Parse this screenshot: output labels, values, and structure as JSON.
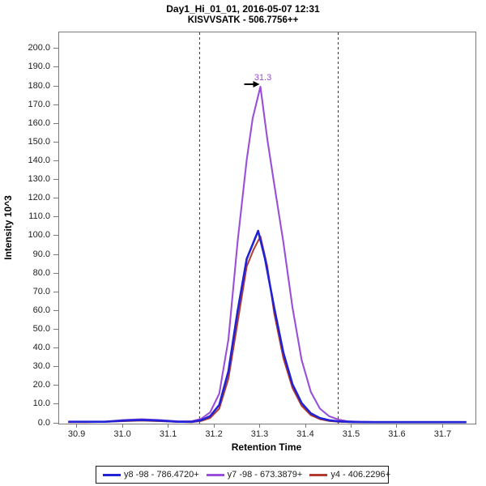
{
  "chart_data": {
    "type": "line",
    "title": "Day1_Hi_01_01, 2016-05-07 12:31",
    "subtitle": "KISVVSATK - 506.7756++",
    "xlabel": "Retention Time",
    "ylabel": "Intensity 10^3",
    "xlim": [
      30.86,
      31.77
    ],
    "ylim": [
      0,
      209
    ],
    "xticks": [
      30.9,
      31.0,
      31.1,
      31.2,
      31.3,
      31.4,
      31.5,
      31.6,
      31.7
    ],
    "ytick_min": 0,
    "ytick_max": 200,
    "ytick_step": 10,
    "grid": false,
    "legend_position": "bottom",
    "border_color": "#7a7a7a",
    "boundary_color": "#333333",
    "integration_boundaries": [
      31.167,
      31.47
    ],
    "peak_annotation": {
      "text": "31.3",
      "rt": 31.3,
      "intensity": 180,
      "color": "#9a4fd8",
      "arrow_color": "#000000"
    },
    "draw_order": [
      1,
      2,
      0
    ],
    "series": [
      {
        "name": "y8 -98 - 786.4720+",
        "color": "#2121d6",
        "width": 2.6,
        "points": [
          [
            30.88,
            1.0
          ],
          [
            30.92,
            1.0
          ],
          [
            30.96,
            1.0
          ],
          [
            31.0,
            1.6
          ],
          [
            31.04,
            2.0
          ],
          [
            31.08,
            1.6
          ],
          [
            31.12,
            1.0
          ],
          [
            31.15,
            1.0
          ],
          [
            31.17,
            1.8
          ],
          [
            31.19,
            4.0
          ],
          [
            31.21,
            10
          ],
          [
            31.23,
            28
          ],
          [
            31.25,
            60
          ],
          [
            31.27,
            88
          ],
          [
            31.285,
            97
          ],
          [
            31.295,
            103
          ],
          [
            31.31,
            88
          ],
          [
            31.33,
            62
          ],
          [
            31.35,
            38
          ],
          [
            31.37,
            21
          ],
          [
            31.39,
            11
          ],
          [
            31.41,
            5.5
          ],
          [
            31.43,
            3.0
          ],
          [
            31.45,
            1.8
          ],
          [
            31.47,
            1.2
          ],
          [
            31.5,
            0.9
          ],
          [
            31.55,
            0.8
          ],
          [
            31.6,
            0.8
          ],
          [
            31.65,
            0.8
          ],
          [
            31.7,
            0.8
          ],
          [
            31.75,
            0.8
          ]
        ]
      },
      {
        "name": "y7 -98 - 673.3879+",
        "color": "#9a4fd8",
        "width": 2.1,
        "points": [
          [
            30.88,
            1.0
          ],
          [
            30.92,
            1.0
          ],
          [
            30.96,
            1.1
          ],
          [
            31.0,
            1.9
          ],
          [
            31.04,
            2.4
          ],
          [
            31.08,
            1.9
          ],
          [
            31.12,
            1.2
          ],
          [
            31.15,
            1.3
          ],
          [
            31.17,
            2.5
          ],
          [
            31.19,
            6.0
          ],
          [
            31.21,
            16
          ],
          [
            31.23,
            45
          ],
          [
            31.25,
            97
          ],
          [
            31.27,
            141
          ],
          [
            31.283,
            163
          ],
          [
            31.3,
            180
          ],
          [
            31.315,
            152
          ],
          [
            31.33,
            128
          ],
          [
            31.35,
            97
          ],
          [
            31.37,
            62
          ],
          [
            31.39,
            34
          ],
          [
            31.41,
            17
          ],
          [
            31.43,
            8.0
          ],
          [
            31.45,
            4.0
          ],
          [
            31.47,
            2.2
          ],
          [
            31.49,
            1.3
          ],
          [
            31.52,
            1.0
          ],
          [
            31.55,
            0.9
          ],
          [
            31.6,
            0.9
          ],
          [
            31.65,
            0.9
          ],
          [
            31.7,
            0.9
          ],
          [
            31.75,
            0.9
          ]
        ]
      },
      {
        "name": "y4 - 406.2296+",
        "color": "#b23a2e",
        "width": 2.0,
        "points": [
          [
            30.88,
            0.8
          ],
          [
            30.92,
            0.8
          ],
          [
            30.96,
            0.9
          ],
          [
            31.0,
            1.3
          ],
          [
            31.04,
            1.6
          ],
          [
            31.08,
            1.3
          ],
          [
            31.12,
            0.9
          ],
          [
            31.15,
            0.8
          ],
          [
            31.17,
            1.4
          ],
          [
            31.19,
            3.0
          ],
          [
            31.21,
            8.0
          ],
          [
            31.23,
            24
          ],
          [
            31.25,
            54
          ],
          [
            31.27,
            84
          ],
          [
            31.285,
            93
          ],
          [
            31.3,
            100
          ],
          [
            31.315,
            84
          ],
          [
            31.33,
            59
          ],
          [
            31.35,
            35
          ],
          [
            31.37,
            19
          ],
          [
            31.39,
            9.5
          ],
          [
            31.41,
            4.5
          ],
          [
            31.43,
            2.4
          ],
          [
            31.45,
            1.4
          ],
          [
            31.47,
            1.0
          ],
          [
            31.5,
            0.8
          ],
          [
            31.55,
            0.7
          ],
          [
            31.6,
            0.7
          ],
          [
            31.65,
            0.7
          ],
          [
            31.7,
            0.7
          ],
          [
            31.75,
            0.7
          ]
        ]
      }
    ]
  }
}
